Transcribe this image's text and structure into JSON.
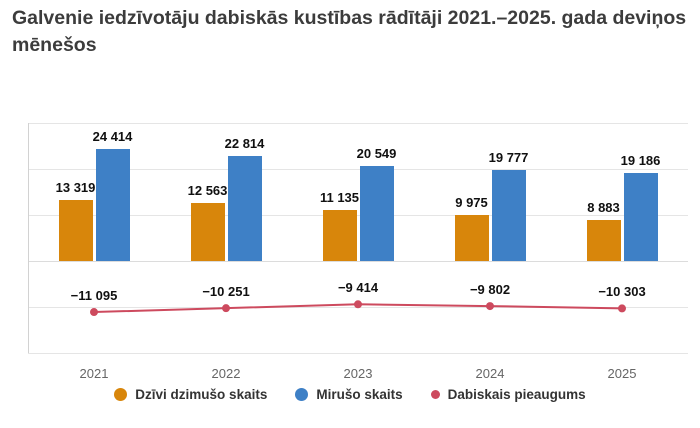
{
  "title": "Galvenie iedzīvotāju dabiskās kustības rādītāji 2021.–2025. gada deviņos mēnešos",
  "colors": {
    "births": "#d8860b",
    "deaths": "#3e80c6",
    "natural_increase": "#cd4a5e",
    "gridline": "#e5e5e5",
    "title_text": "#3c3c3c"
  },
  "chart_data": {
    "type": "bar",
    "categories": [
      "2021",
      "2022",
      "2023",
      "2024",
      "2025"
    ],
    "series": [
      {
        "id": "births",
        "name": "Dzīvi dzimušo skaits",
        "type": "bar",
        "color": "#d8860b",
        "values": [
          13319,
          12563,
          11135,
          9975,
          8883
        ],
        "labels": [
          "13 319",
          "12 563",
          "11 135",
          "9 975",
          "8 883"
        ]
      },
      {
        "id": "deaths",
        "name": "Mirušo skaits",
        "type": "bar",
        "color": "#3e80c6",
        "values": [
          24414,
          22814,
          20549,
          19777,
          19186
        ],
        "labels": [
          "24 414",
          "22 814",
          "20 549",
          "19 777",
          "19 186"
        ]
      },
      {
        "id": "natural-increase",
        "name": "Dabiskais pieaugums",
        "type": "line",
        "color": "#cd4a5e",
        "values": [
          -11095,
          -10251,
          -9414,
          -9802,
          -10303
        ],
        "labels": [
          "−11 095",
          "−10 251",
          "−9 414",
          "−9 802",
          "−10 303"
        ]
      }
    ],
    "ylim": [
      -20000,
      30000
    ],
    "grid": true,
    "legend_position": "bottom",
    "xlabel": "",
    "ylabel": ""
  }
}
